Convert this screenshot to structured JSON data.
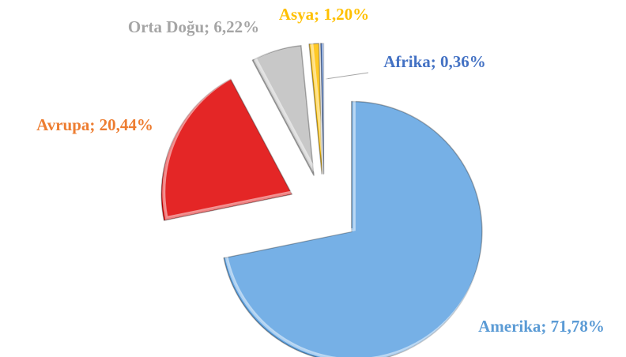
{
  "chart_data": {
    "type": "pie",
    "values": [
      71.78,
      20.44,
      6.22,
      1.2,
      0.36
    ],
    "value_labels": [
      "Amerika; 71,78%",
      "Avrupa; 20,44%",
      "Orta Doğu; 6,22%",
      "Asya; 1,20%",
      "Afrika; 0,36%"
    ],
    "colors": [
      "#5fa3e2",
      "#e00000",
      "#bfbfbf",
      "#ffc000",
      "#4472c4"
    ],
    "label_colors": [
      "#5b9bd5",
      "#ed7d31",
      "#a5a5a5",
      "#ffc000",
      "#4472c4"
    ]
  }
}
